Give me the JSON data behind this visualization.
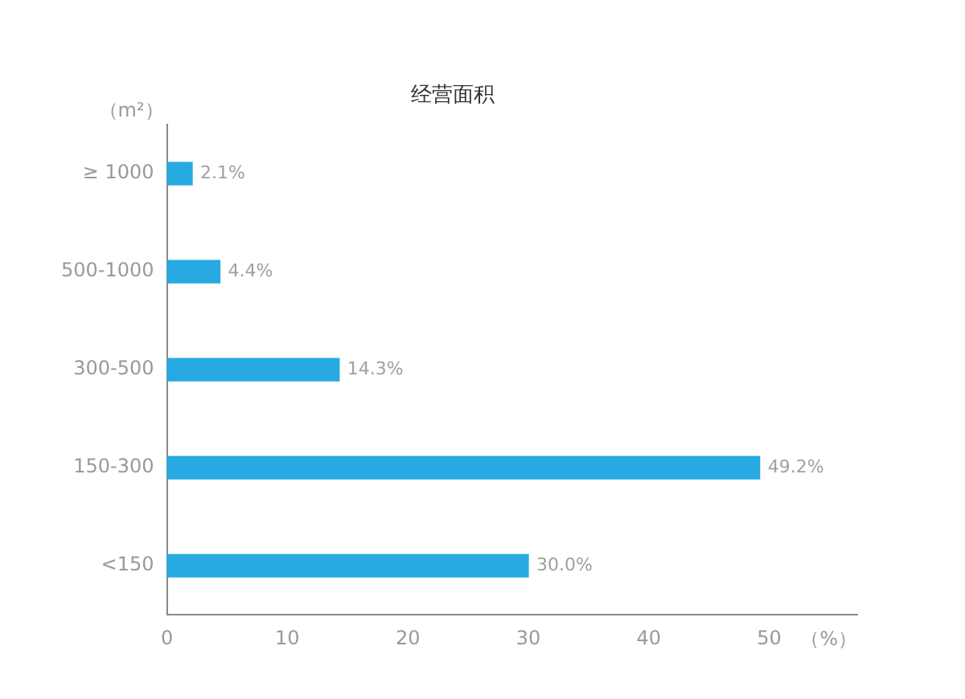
{
  "chart_data": {
    "type": "bar",
    "orientation": "horizontal",
    "title": "经营面积",
    "xlabel": "（%）",
    "ylabel": "（m²）",
    "categories": [
      "≥ 1000",
      "500-1000",
      "300-500",
      "150-300",
      "<150"
    ],
    "series": [
      {
        "color": "#27a9e1",
        "values": [
          2.1,
          4.4,
          14.3,
          49.2,
          30.0
        ],
        "value_labels": [
          "2.1%",
          "4.4%",
          "14.3%",
          "49.2%",
          "30.0%"
        ]
      }
    ],
    "xlim": [
      0,
      57.3
    ],
    "xticks": [
      0,
      10,
      20,
      30,
      40,
      50
    ],
    "grid": false,
    "legend": false
  }
}
